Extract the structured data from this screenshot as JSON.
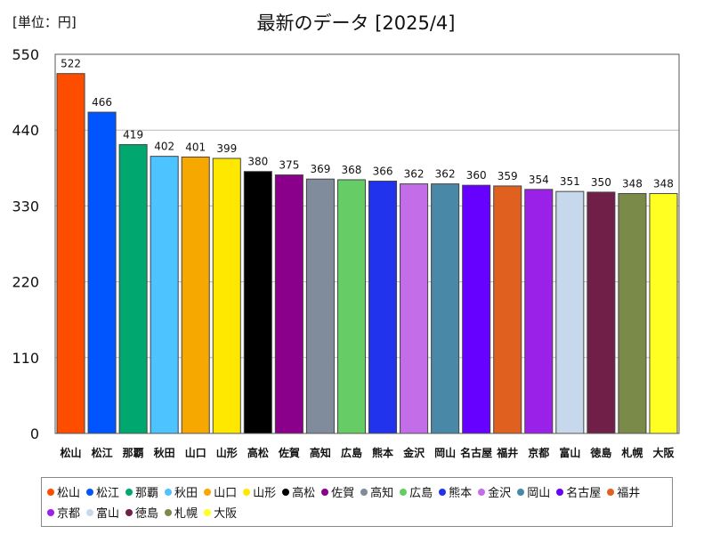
{
  "chart_data": {
    "type": "bar",
    "title": "最新のデータ [2025/4]",
    "unit_label": "[単位：円]",
    "xlabel": "",
    "ylabel": "",
    "ylim": [
      0,
      550
    ],
    "yticks": [
      0,
      110,
      220,
      330,
      440,
      550
    ],
    "grid": true,
    "legend_position": "bottom",
    "categories": [
      "松山",
      "松江",
      "那覇",
      "秋田",
      "山口",
      "山形",
      "高松",
      "佐賀",
      "高知",
      "広島",
      "熊本",
      "金沢",
      "岡山",
      "名古屋",
      "福井",
      "京都",
      "富山",
      "徳島",
      "札幌",
      "大阪"
    ],
    "values": [
      522,
      466,
      419,
      402,
      401,
      399,
      380,
      375,
      369,
      368,
      366,
      362,
      362,
      360,
      359,
      354,
      351,
      350,
      348,
      348
    ],
    "colors": [
      "#ff4d00",
      "#0055ff",
      "#00a870",
      "#4dc3ff",
      "#f7a800",
      "#ffe800",
      "#000000",
      "#8b008b",
      "#808c9c",
      "#66cc66",
      "#2233ee",
      "#c46de8",
      "#4a88a8",
      "#6600ff",
      "#e06020",
      "#9a22e8",
      "#c8d8ec",
      "#702048",
      "#7a8a48",
      "#ffff22"
    ]
  }
}
